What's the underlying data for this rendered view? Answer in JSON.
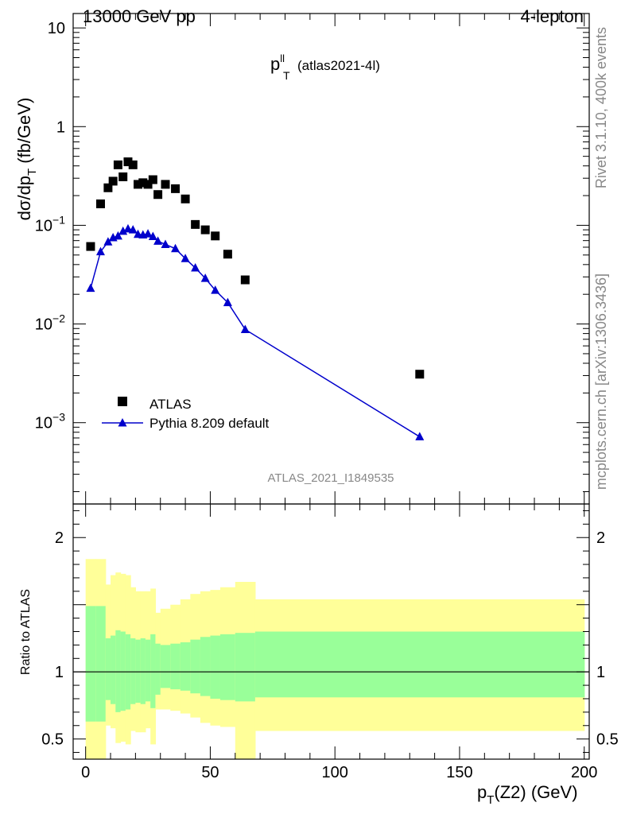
{
  "header": {
    "left": "13000 GeV pp",
    "right": "4-lepton"
  },
  "side_text": {
    "top": "Rivet 3.1.10,  400k events",
    "bottom": "mcplots.cern.ch [arXiv:1306.3436]"
  },
  "watermark": "ATLAS_2021_I1849535",
  "chart_data": [
    {
      "type": "scatter",
      "title": {
        "main": "p",
        "sup": "ll",
        "sub": "T",
        "suffix": "(atlas2021-4l)"
      },
      "ylabel": {
        "main": "dσ/dp",
        "sub": "T",
        "units": "(fb/GeV)"
      },
      "y_scale": "log",
      "xlim": [
        -5,
        202
      ],
      "ylim": [
        0.00015,
        14
      ],
      "y_ticks": [
        {
          "value": 0.001,
          "base": "10",
          "exp": "−3"
        },
        {
          "value": 0.01,
          "base": "10",
          "exp": "−2"
        },
        {
          "value": 0.1,
          "base": "10",
          "exp": "−1"
        },
        {
          "value": 1,
          "base": "1",
          "exp": ""
        },
        {
          "value": 10,
          "base": "10",
          "exp": ""
        }
      ],
      "series": [
        {
          "name": "ATLAS",
          "marker": "square",
          "color": "#000000",
          "x": [
            2,
            6,
            9,
            11,
            13,
            15,
            17,
            19,
            21,
            23,
            25,
            27,
            29,
            32,
            36,
            40,
            44,
            48,
            52,
            57,
            64,
            134
          ],
          "y": [
            0.061,
            0.165,
            0.24,
            0.28,
            0.41,
            0.31,
            0.44,
            0.41,
            0.26,
            0.27,
            0.26,
            0.29,
            0.205,
            0.26,
            0.235,
            0.185,
            0.102,
            0.09,
            0.078,
            0.051,
            0.028,
            0.0031
          ]
        },
        {
          "name": "Pythia 8.209 default",
          "marker": "triangle",
          "color": "#0000cc",
          "x": [
            2,
            6,
            9,
            11,
            13,
            15,
            17,
            19,
            21,
            23,
            25,
            27,
            29,
            32,
            36,
            40,
            44,
            48,
            52,
            57,
            64,
            134
          ],
          "y": [
            0.023,
            0.054,
            0.068,
            0.075,
            0.078,
            0.087,
            0.092,
            0.09,
            0.081,
            0.08,
            0.082,
            0.077,
            0.069,
            0.064,
            0.058,
            0.046,
            0.037,
            0.029,
            0.022,
            0.0165,
            0.0088,
            0.00072
          ]
        }
      ],
      "legend": {
        "placement": "bottom-left"
      }
    },
    {
      "type": "area",
      "ylabel": "Ratio to ATLAS",
      "xlabel": {
        "main": "p",
        "sub": "T",
        "suffix": "(Z2) (GeV)"
      },
      "xlim": [
        -5,
        202
      ],
      "ylim": [
        0.35,
        2.25
      ],
      "x_ticks": [
        0,
        50,
        100,
        150,
        200
      ],
      "y_ticks": [
        {
          "value": 0.5,
          "label": "0.5"
        },
        {
          "value": 1,
          "label": "1"
        },
        {
          "value": 2,
          "label": "2"
        }
      ],
      "reference_line": 1,
      "bands": {
        "edges": [
          0,
          4,
          8,
          10,
          12,
          14,
          16,
          18,
          20,
          22,
          24,
          26,
          28,
          30,
          34,
          38,
          42,
          46,
          50,
          54,
          60,
          68,
          200
        ],
        "inner_color": "#99ff99",
        "outer_color": "#ffff99",
        "inner_low": [
          0.63,
          0.63,
          0.79,
          0.76,
          0.7,
          0.71,
          0.72,
          0.76,
          0.77,
          0.76,
          0.78,
          0.73,
          0.83,
          0.88,
          0.87,
          0.86,
          0.84,
          0.82,
          0.8,
          0.79,
          0.78,
          0.81
        ],
        "inner_high": [
          1.49,
          1.49,
          1.25,
          1.27,
          1.31,
          1.3,
          1.28,
          1.25,
          1.24,
          1.25,
          1.24,
          1.28,
          1.21,
          1.2,
          1.21,
          1.22,
          1.24,
          1.26,
          1.27,
          1.28,
          1.29,
          1.3
        ],
        "outer_low": [
          0.35,
          0.35,
          0.6,
          0.58,
          0.47,
          0.48,
          0.46,
          0.56,
          0.55,
          0.55,
          0.58,
          0.46,
          0.72,
          0.72,
          0.71,
          0.69,
          0.66,
          0.62,
          0.6,
          0.59,
          0.35,
          0.56
        ],
        "outer_high": [
          1.84,
          1.84,
          1.65,
          1.72,
          1.74,
          1.73,
          1.72,
          1.63,
          1.6,
          1.6,
          1.6,
          1.62,
          1.44,
          1.47,
          1.5,
          1.54,
          1.58,
          1.6,
          1.61,
          1.63,
          1.67,
          1.54
        ]
      }
    }
  ]
}
